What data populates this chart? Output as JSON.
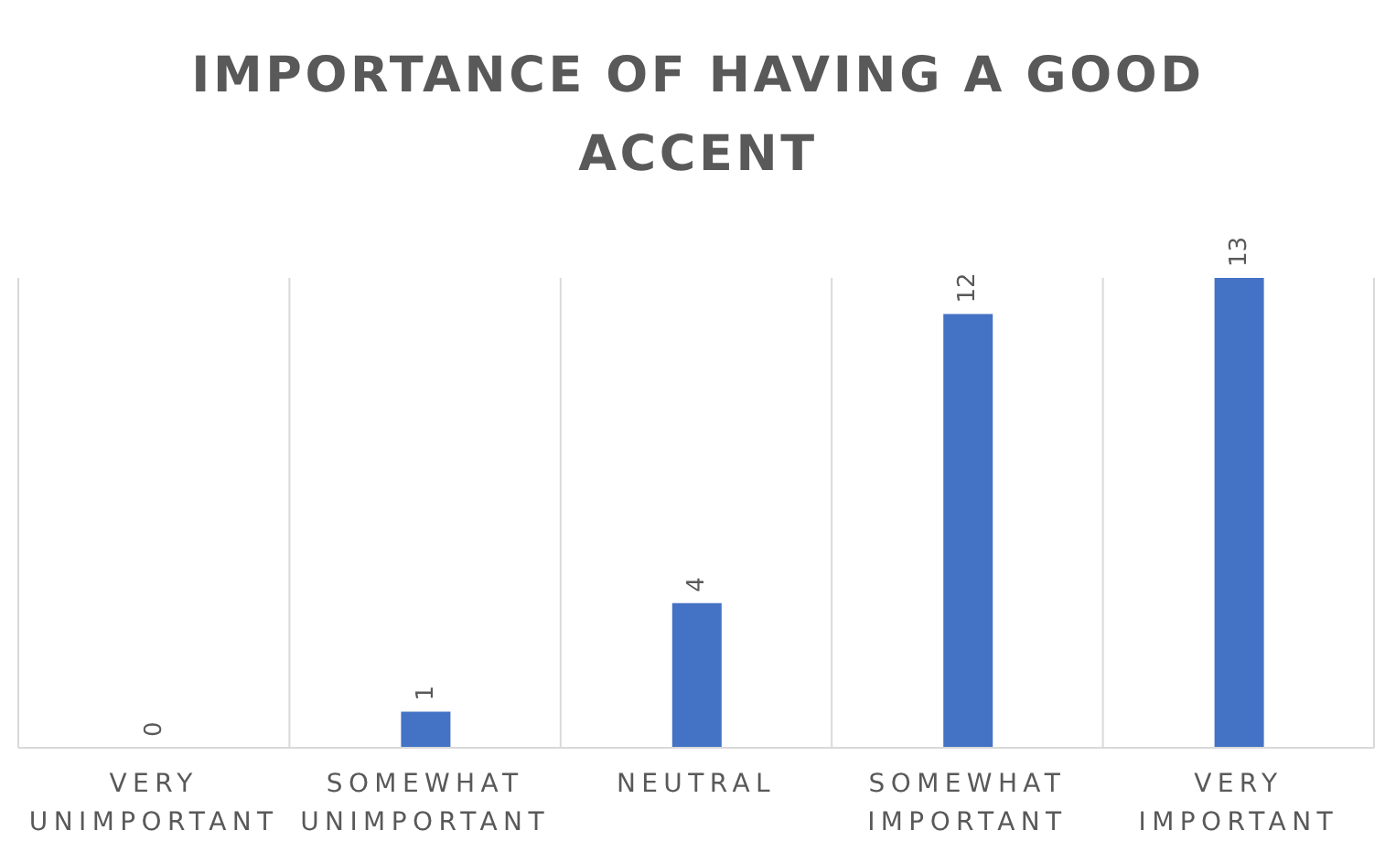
{
  "chart_data": {
    "type": "bar",
    "title": "IMPORTANCE OF HAVING A GOOD ACCENT",
    "categories": [
      "VERY UNIMPORTANT",
      "SOMEWHAT UNIMPORTANT",
      "NEUTRAL",
      "SOMEWHAT IMPORTANT",
      "VERY IMPORTANT"
    ],
    "values": [
      0,
      1,
      4,
      12,
      13
    ],
    "color": "#4472c4",
    "data_labels": true,
    "grid": "x",
    "tick_labels": "x"
  }
}
